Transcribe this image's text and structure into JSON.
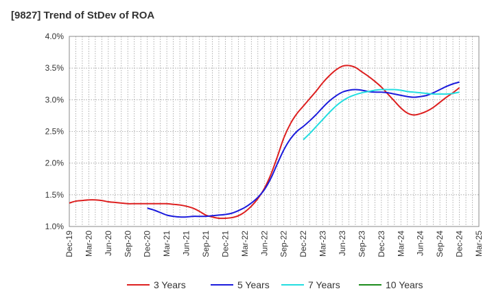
{
  "chart_data": {
    "type": "line",
    "title": "[9827]  Trend of StDev of ROA",
    "xlabel": "",
    "ylabel": "",
    "ylim": [
      1.0,
      4.0
    ],
    "yticks": [
      1.0,
      1.5,
      2.0,
      2.5,
      3.0,
      3.5,
      4.0
    ],
    "ytick_labels": [
      "1.0%",
      "1.5%",
      "2.0%",
      "2.5%",
      "3.0%",
      "3.5%",
      "4.0%"
    ],
    "xticks": [
      "Dec-19",
      "Mar-20",
      "Jun-20",
      "Sep-20",
      "Dec-20",
      "Mar-21",
      "Jun-21",
      "Sep-21",
      "Dec-21",
      "Mar-22",
      "Jun-22",
      "Sep-22",
      "Dec-22",
      "Mar-23",
      "Jun-23",
      "Sep-23",
      "Dec-23",
      "Mar-24",
      "Jun-24",
      "Sep-24",
      "Dec-24",
      "Mar-25"
    ],
    "grid": true,
    "legend_position": "bottom",
    "series": [
      {
        "name": "3 Years",
        "color": "#dd1f1f",
        "points": [
          [
            "Dec-19",
            1.37
          ],
          [
            "Jan-20",
            1.4
          ],
          [
            "Feb-20",
            1.41
          ],
          [
            "Mar-20",
            1.42
          ],
          [
            "Apr-20",
            1.42
          ],
          [
            "May-20",
            1.41
          ],
          [
            "Jun-20",
            1.39
          ],
          [
            "Jul-20",
            1.38
          ],
          [
            "Aug-20",
            1.37
          ],
          [
            "Sep-20",
            1.36
          ],
          [
            "Oct-20",
            1.36
          ],
          [
            "Nov-20",
            1.36
          ],
          [
            "Dec-20",
            1.36
          ],
          [
            "Jan-21",
            1.36
          ],
          [
            "Feb-21",
            1.36
          ],
          [
            "Mar-21",
            1.36
          ],
          [
            "Apr-21",
            1.35
          ],
          [
            "May-21",
            1.34
          ],
          [
            "Jun-21",
            1.32
          ],
          [
            "Jul-21",
            1.29
          ],
          [
            "Aug-21",
            1.24
          ],
          [
            "Sep-21",
            1.18
          ],
          [
            "Oct-21",
            1.15
          ],
          [
            "Nov-21",
            1.13
          ],
          [
            "Dec-21",
            1.13
          ],
          [
            "Jan-22",
            1.14
          ],
          [
            "Feb-22",
            1.17
          ],
          [
            "Mar-22",
            1.23
          ],
          [
            "Apr-22",
            1.32
          ],
          [
            "May-22",
            1.44
          ],
          [
            "Jun-22",
            1.6
          ],
          [
            "Jul-22",
            1.82
          ],
          [
            "Aug-22",
            2.1
          ],
          [
            "Sep-22",
            2.4
          ],
          [
            "Oct-22",
            2.62
          ],
          [
            "Nov-22",
            2.78
          ],
          [
            "Dec-22",
            2.9
          ],
          [
            "Jan-23",
            3.02
          ],
          [
            "Feb-23",
            3.14
          ],
          [
            "Mar-23",
            3.27
          ],
          [
            "Apr-23",
            3.38
          ],
          [
            "May-23",
            3.47
          ],
          [
            "Jun-23",
            3.53
          ],
          [
            "Jul-23",
            3.54
          ],
          [
            "Aug-23",
            3.51
          ],
          [
            "Sep-23",
            3.44
          ],
          [
            "Oct-23",
            3.37
          ],
          [
            "Nov-23",
            3.29
          ],
          [
            "Dec-23",
            3.2
          ],
          [
            "Jan-24",
            3.09
          ],
          [
            "Feb-24",
            2.98
          ],
          [
            "Mar-24",
            2.87
          ],
          [
            "Apr-24",
            2.79
          ],
          [
            "May-24",
            2.76
          ],
          [
            "Jun-24",
            2.78
          ],
          [
            "Jul-24",
            2.82
          ],
          [
            "Aug-24",
            2.88
          ],
          [
            "Sep-24",
            2.96
          ],
          [
            "Oct-24",
            3.04
          ],
          [
            "Nov-24",
            3.11
          ],
          [
            "Dec-24",
            3.19
          ]
        ]
      },
      {
        "name": "5 Years",
        "color": "#1a1adc",
        "points": [
          [
            "Dec-20",
            1.29
          ],
          [
            "Jan-21",
            1.26
          ],
          [
            "Feb-21",
            1.22
          ],
          [
            "Mar-21",
            1.18
          ],
          [
            "Apr-21",
            1.16
          ],
          [
            "May-21",
            1.15
          ],
          [
            "Jun-21",
            1.15
          ],
          [
            "Jul-21",
            1.16
          ],
          [
            "Aug-21",
            1.16
          ],
          [
            "Sep-21",
            1.16
          ],
          [
            "Oct-21",
            1.17
          ],
          [
            "Nov-21",
            1.18
          ],
          [
            "Dec-21",
            1.19
          ],
          [
            "Jan-22",
            1.21
          ],
          [
            "Feb-22",
            1.25
          ],
          [
            "Mar-22",
            1.3
          ],
          [
            "Apr-22",
            1.37
          ],
          [
            "May-22",
            1.46
          ],
          [
            "Jun-22",
            1.58
          ],
          [
            "Jul-22",
            1.76
          ],
          [
            "Aug-22",
            1.99
          ],
          [
            "Sep-22",
            2.21
          ],
          [
            "Oct-22",
            2.38
          ],
          [
            "Nov-22",
            2.5
          ],
          [
            "Dec-22",
            2.58
          ],
          [
            "Jan-23",
            2.67
          ],
          [
            "Feb-23",
            2.77
          ],
          [
            "Mar-23",
            2.88
          ],
          [
            "Apr-23",
            2.98
          ],
          [
            "May-23",
            3.06
          ],
          [
            "Jun-23",
            3.12
          ],
          [
            "Jul-23",
            3.15
          ],
          [
            "Aug-23",
            3.16
          ],
          [
            "Sep-23",
            3.15
          ],
          [
            "Oct-23",
            3.13
          ],
          [
            "Nov-23",
            3.12
          ],
          [
            "Dec-23",
            3.12
          ],
          [
            "Jan-24",
            3.11
          ],
          [
            "Feb-24",
            3.09
          ],
          [
            "Mar-24",
            3.07
          ],
          [
            "Apr-24",
            3.05
          ],
          [
            "May-24",
            3.04
          ],
          [
            "Jun-24",
            3.05
          ],
          [
            "Jul-24",
            3.07
          ],
          [
            "Aug-24",
            3.11
          ],
          [
            "Sep-24",
            3.16
          ],
          [
            "Oct-24",
            3.21
          ],
          [
            "Nov-24",
            3.25
          ],
          [
            "Dec-24",
            3.28
          ]
        ]
      },
      {
        "name": "7 Years",
        "color": "#22dde0",
        "points": [
          [
            "Dec-22",
            2.37
          ],
          [
            "Jan-23",
            2.47
          ],
          [
            "Feb-23",
            2.58
          ],
          [
            "Mar-23",
            2.69
          ],
          [
            "Apr-23",
            2.8
          ],
          [
            "May-23",
            2.9
          ],
          [
            "Jun-23",
            2.98
          ],
          [
            "Jul-23",
            3.04
          ],
          [
            "Aug-23",
            3.08
          ],
          [
            "Sep-23",
            3.11
          ],
          [
            "Oct-23",
            3.13
          ],
          [
            "Nov-23",
            3.15
          ],
          [
            "Dec-23",
            3.16
          ],
          [
            "Jan-24",
            3.16
          ],
          [
            "Feb-24",
            3.16
          ],
          [
            "Mar-24",
            3.15
          ],
          [
            "Apr-24",
            3.13
          ],
          [
            "May-24",
            3.12
          ],
          [
            "Jun-24",
            3.11
          ],
          [
            "Jul-24",
            3.1
          ],
          [
            "Aug-24",
            3.09
          ],
          [
            "Sep-24",
            3.09
          ],
          [
            "Oct-24",
            3.09
          ],
          [
            "Nov-24",
            3.1
          ],
          [
            "Dec-24",
            3.12
          ]
        ]
      },
      {
        "name": "10 Years",
        "color": "#1a8a1a",
        "points": []
      }
    ]
  }
}
